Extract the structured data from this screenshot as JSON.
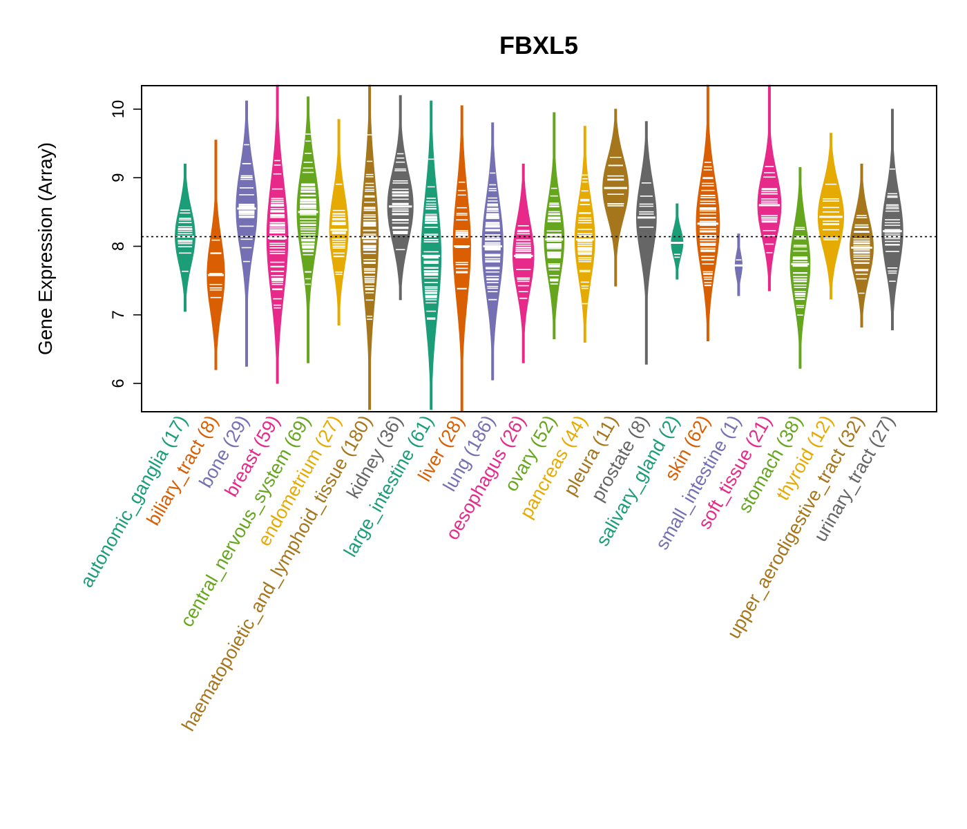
{
  "chart_data": {
    "type": "beanplot",
    "title": "FBXL5",
    "ylabel": "Gene Expression (Array)",
    "xlabel": "",
    "ylim": [
      5.6,
      10.35
    ],
    "yticks": [
      6,
      7,
      8,
      9,
      10
    ],
    "overall_mean": 8.14,
    "palette": [
      "#1B9E77",
      "#D95F02",
      "#7570B3",
      "#E7298A",
      "#66A61E",
      "#E6AB02",
      "#A6761D",
      "#666666"
    ],
    "categories": [
      {
        "name": "autonomic_ganglia",
        "count": "(17)",
        "label": "autonomic_ganglia (17)",
        "color": "#1B9E77",
        "mean": 8.14,
        "min": 7.05,
        "max": 9.2,
        "width": 0.34
      },
      {
        "name": "biliary_tract",
        "count": "(8)",
        "label": "biliary_tract (8)",
        "color": "#D95F02",
        "mean": 7.58,
        "min": 6.2,
        "max": 9.55,
        "width": 0.3
      },
      {
        "name": "bone",
        "count": "(29)",
        "label": "bone (29)",
        "color": "#7570B3",
        "mean": 8.55,
        "min": 6.25,
        "max": 10.12,
        "width": 0.36
      },
      {
        "name": "breast",
        "count": "(59)",
        "label": "breast (59)",
        "color": "#E7298A",
        "mean": 8.12,
        "min": 6.0,
        "max": 10.35,
        "width": 0.36
      },
      {
        "name": "central_nervous_system",
        "count": "(69)",
        "label": "central_nervous_system (69)",
        "color": "#66A61E",
        "mean": 8.5,
        "min": 6.3,
        "max": 10.18,
        "width": 0.38
      },
      {
        "name": "endometrium",
        "count": "(27)",
        "label": "endometrium (27)",
        "color": "#E6AB02",
        "mean": 8.24,
        "min": 6.85,
        "max": 9.85,
        "width": 0.32
      },
      {
        "name": "haematopoietic_and_lymphoid_tissue",
        "count": "(180)",
        "label": "haematopoietic_and_lymphoid_tissue (180)",
        "color": "#A6761D",
        "mean": 8.12,
        "min": 5.62,
        "max": 10.35,
        "width": 0.3
      },
      {
        "name": "kidney",
        "count": "(36)",
        "label": "kidney (36)",
        "color": "#666666",
        "mean": 8.58,
        "min": 7.22,
        "max": 10.2,
        "width": 0.44
      },
      {
        "name": "large_intestine",
        "count": "(61)",
        "label": "large_intestine (61)",
        "color": "#1B9E77",
        "mean": 7.86,
        "min": 5.62,
        "max": 10.12,
        "width": 0.34
      },
      {
        "name": "liver",
        "count": "(28)",
        "label": "liver (28)",
        "color": "#D95F02",
        "mean": 8.0,
        "min": 5.6,
        "max": 10.05,
        "width": 0.3
      },
      {
        "name": "lung",
        "count": "(186)",
        "label": "lung (186)",
        "color": "#7570B3",
        "mean": 8.0,
        "min": 6.05,
        "max": 9.8,
        "width": 0.36
      },
      {
        "name": "oesophagus",
        "count": "(26)",
        "label": "oesophagus (26)",
        "color": "#E7298A",
        "mean": 7.86,
        "min": 6.3,
        "max": 9.2,
        "width": 0.36
      },
      {
        "name": "ovary",
        "count": "(52)",
        "label": "ovary (52)",
        "color": "#66A61E",
        "mean": 8.1,
        "min": 6.65,
        "max": 9.95,
        "width": 0.34
      },
      {
        "name": "pancreas",
        "count": "(44)",
        "label": "pancreas (44)",
        "color": "#E6AB02",
        "mean": 8.1,
        "min": 6.6,
        "max": 9.75,
        "width": 0.34
      },
      {
        "name": "pleura",
        "count": "(11)",
        "label": "pleura (11)",
        "color": "#A6761D",
        "mean": 8.85,
        "min": 7.42,
        "max": 10.0,
        "width": 0.44
      },
      {
        "name": "prostate",
        "count": "(8)",
        "label": "prostate (8)",
        "color": "#666666",
        "mean": 8.42,
        "min": 6.28,
        "max": 9.82,
        "width": 0.34
      },
      {
        "name": "salivary_gland",
        "count": "(2)",
        "label": "salivary_gland (2)",
        "color": "#1B9E77",
        "mean": 8.05,
        "min": 7.52,
        "max": 8.62,
        "width": 0.2
      },
      {
        "name": "skin",
        "count": "(62)",
        "label": "skin (62)",
        "color": "#D95F02",
        "mean": 8.33,
        "min": 6.62,
        "max": 10.35,
        "width": 0.4
      },
      {
        "name": "small_intestine",
        "count": "(1)",
        "label": "small_intestine (1)",
        "color": "#7570B3",
        "mean": 7.72,
        "min": 7.28,
        "max": 8.18,
        "width": 0.12
      },
      {
        "name": "soft_tissue",
        "count": "(21)",
        "label": "soft_tissue (21)",
        "color": "#E7298A",
        "mean": 8.6,
        "min": 7.35,
        "max": 10.35,
        "width": 0.4
      },
      {
        "name": "stomach",
        "count": "(38)",
        "label": "stomach (38)",
        "color": "#66A61E",
        "mean": 7.74,
        "min": 6.22,
        "max": 9.15,
        "width": 0.34
      },
      {
        "name": "thyroid",
        "count": "(12)",
        "label": "thyroid (12)",
        "color": "#E6AB02",
        "mean": 8.43,
        "min": 7.23,
        "max": 9.65,
        "width": 0.44
      },
      {
        "name": "upper_aerodigestive_tract",
        "count": "(32)",
        "label": "upper_aerodigestive_tract (32)",
        "color": "#A6761D",
        "mean": 7.98,
        "min": 6.82,
        "max": 9.2,
        "width": 0.4
      },
      {
        "name": "urinary_tract",
        "count": "(27)",
        "label": "urinary_tract (27)",
        "color": "#666666",
        "mean": 8.22,
        "min": 6.78,
        "max": 10.0,
        "width": 0.36
      }
    ]
  }
}
